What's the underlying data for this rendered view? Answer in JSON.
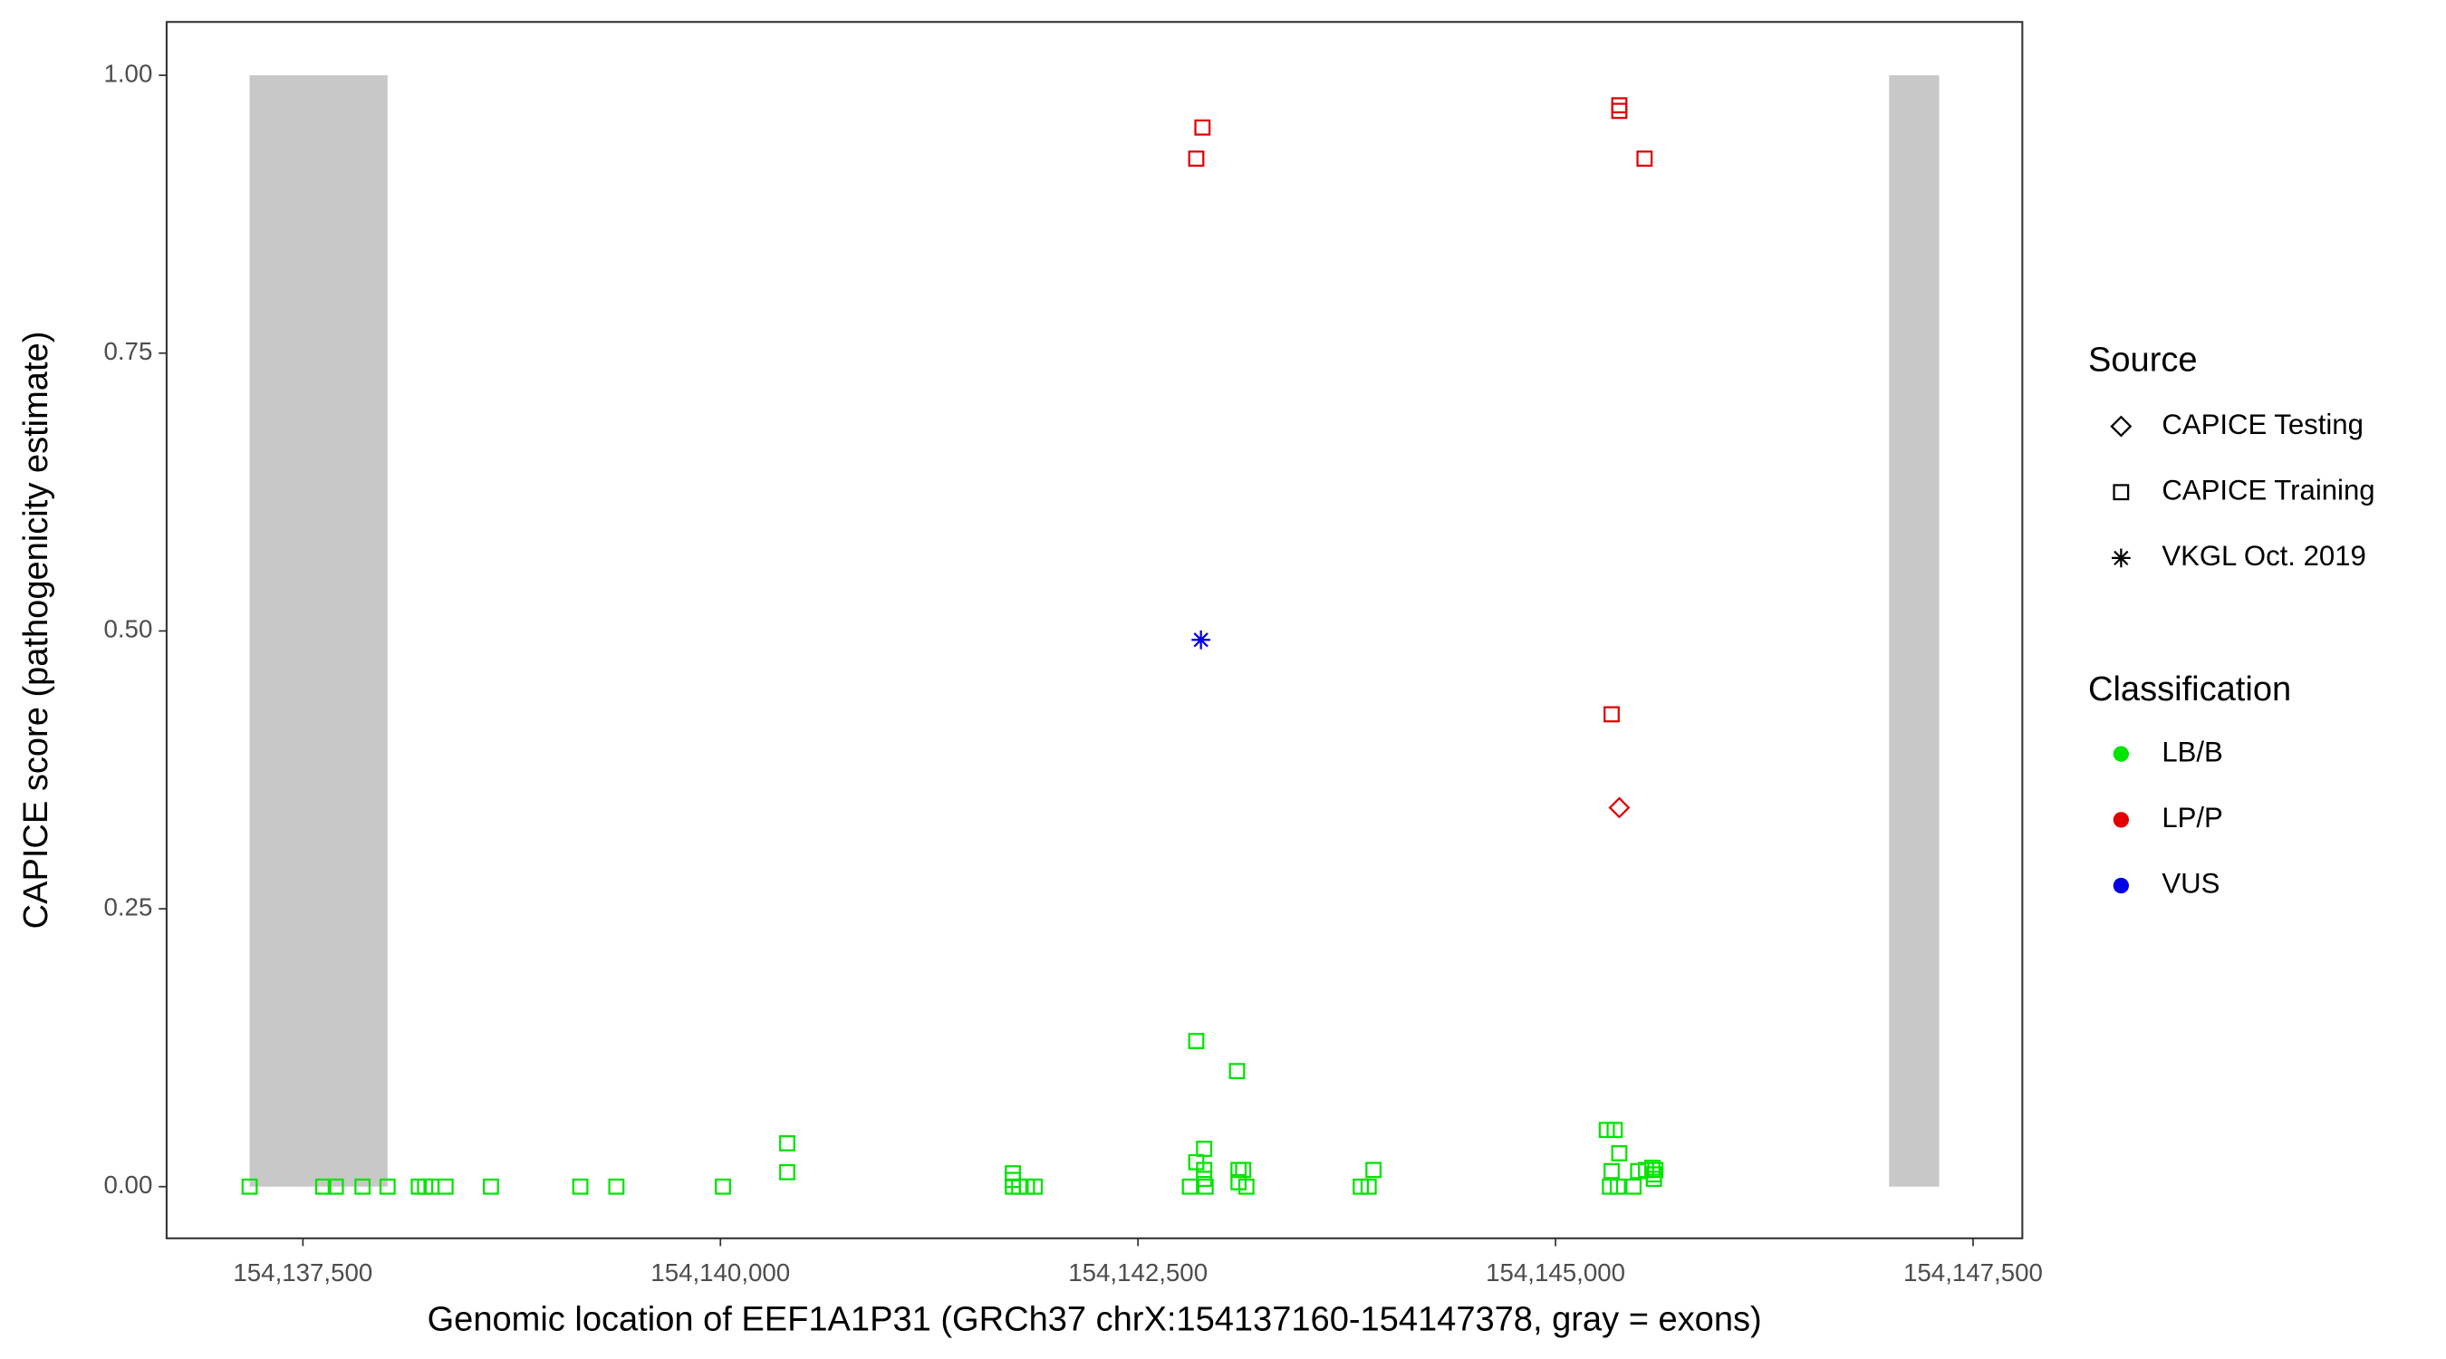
{
  "chart_data": {
    "type": "scatter",
    "x_label": "Genomic location of EEF1A1P31 (GRCh37 chrX:154137160-154147378, gray = exons)",
    "y_label": "CAPICE score (pathogenicity estimate)",
    "xlim": [
      154136684,
      154147795
    ],
    "ylim": [
      -0.0465,
      1.048
    ],
    "xticks": [
      {
        "value": 154137500,
        "label": "154,137,500"
      },
      {
        "value": 154140000,
        "label": "154,140,000"
      },
      {
        "value": 154142500,
        "label": "154,142,500"
      },
      {
        "value": 154145000,
        "label": "154,145,000"
      },
      {
        "value": 154147500,
        "label": "154,147,500"
      }
    ],
    "yticks": [
      {
        "value": 0,
        "label": "0.00"
      },
      {
        "value": 0.25,
        "label": "0.25"
      },
      {
        "value": 0.5,
        "label": "0.50"
      },
      {
        "value": 0.75,
        "label": "0.75"
      },
      {
        "value": 1,
        "label": "1.00"
      }
    ],
    "grid": false,
    "exons": {
      "color": "#c8c8c8",
      "ylim": [
        0,
        1
      ],
      "starts": [
        154137181,
        154146997
      ],
      "ends": [
        154138007,
        154147297
      ]
    },
    "legend_position": "right",
    "source_legend": {
      "title": "Source",
      "items": [
        {
          "name": "CAPICE Testing",
          "shape": "diamond"
        },
        {
          "name": "CAPICE Training",
          "shape": "square"
        },
        {
          "name": "VKGL Oct. 2019",
          "shape": "asterisk"
        }
      ]
    },
    "classification_legend": {
      "title": "Classification",
      "items": [
        {
          "name": "LB/B",
          "color": "#00e400"
        },
        {
          "name": "LP/P",
          "color": "#e00000"
        },
        {
          "name": "VUS",
          "color": "#0000e8"
        }
      ]
    },
    "series": [
      {
        "source": "CAPICE Training",
        "classification": "LB/B",
        "x": [
          154137181,
          154137622,
          154137697,
          154137857,
          154138007,
          154138194,
          154138232,
          154138270,
          154138354,
          154138626,
          154139161,
          154139377,
          154140015,
          154140400,
          154140400,
          154141751,
          154141751,
          154141751,
          154141789,
          154141835,
          154141882,
          154142849,
          154143093,
          154142811,
          154142849,
          154142896,
          154142896,
          154142896,
          154142905,
          154143102,
          154143130,
          154143102,
          154143149,
          154143834,
          154143881,
          154143910,
          154145307,
          154145354,
          154145382,
          154145336,
          154145326,
          154145373,
          154145467,
          154145495,
          154145542,
          154145580,
          154145598,
          154145589,
          154145589
        ],
        "y": [
          0,
          0,
          0,
          0,
          0,
          0,
          0,
          0,
          0,
          0,
          0,
          0,
          0,
          0.039,
          0.013,
          0.012,
          0.006,
          0,
          0,
          0,
          0,
          0.131,
          0.104,
          0,
          0.022,
          0.034,
          0.015,
          0.007,
          0,
          0.015,
          0.015,
          0.004,
          0,
          0,
          0,
          0.015,
          0.051,
          0.051,
          0.03,
          0.014,
          0,
          0,
          0,
          0.014,
          0.015,
          0.017,
          0.015,
          0.007,
          0.011
        ]
      },
      {
        "source": "CAPICE Training",
        "classification": "LP/P",
        "x": [
          154142849,
          154142886,
          154145382,
          154145382,
          154145533,
          154145336
        ],
        "y": [
          0.925,
          0.953,
          0.973,
          0.968,
          0.925,
          0.425
        ]
      },
      {
        "source": "CAPICE Testing",
        "classification": "LP/P",
        "x": [
          154145382
        ],
        "y": [
          0.341
        ]
      },
      {
        "source": "VKGL Oct. 2019",
        "classification": "VUS",
        "x": [
          154142877
        ],
        "y": [
          0.492
        ]
      }
    ]
  }
}
